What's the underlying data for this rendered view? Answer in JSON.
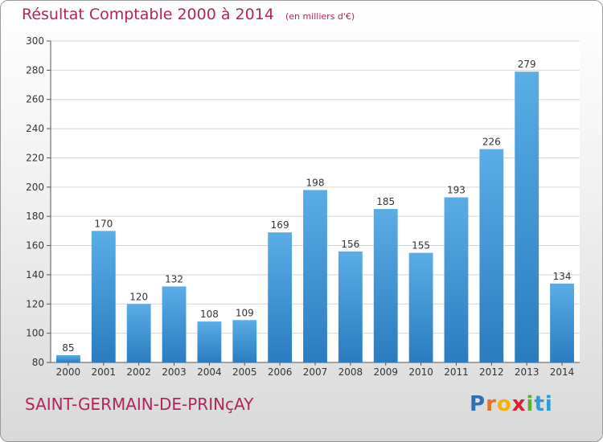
{
  "chart_data": {
    "type": "bar",
    "title": "Résultat Comptable 2000 à 2014",
    "subtitle": "(en milliers d'€)",
    "categories": [
      "2000",
      "2001",
      "2002",
      "2003",
      "2004",
      "2005",
      "2006",
      "2007",
      "2008",
      "2009",
      "2010",
      "2011",
      "2012",
      "2013",
      "2014"
    ],
    "values": [
      85,
      170,
      120,
      132,
      108,
      109,
      169,
      198,
      156,
      185,
      155,
      193,
      226,
      279,
      134
    ],
    "ylim": [
      80,
      300
    ],
    "yticks": [
      80,
      100,
      120,
      140,
      160,
      180,
      200,
      220,
      240,
      260,
      280,
      300
    ],
    "grid": true,
    "xlabel": "",
    "ylabel": "",
    "bar_color_top": "#5aade6",
    "bar_color_bottom": "#2a7cbf"
  },
  "footer": {
    "commune": "SAINT-GERMAIN-DE-PRINçAY",
    "logo": [
      "P",
      "r",
      "o",
      "x",
      "i",
      "ti"
    ]
  }
}
